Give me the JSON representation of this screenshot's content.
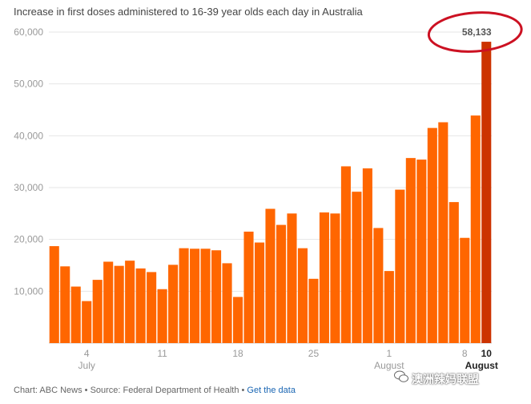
{
  "title": "Increase in first doses administered to 16-39 year olds each day in Australia",
  "footer": {
    "chart_credit": "Chart: ABC News",
    "separator": " • ",
    "source": "Source: Federal Department of Health",
    "link": "Get the data"
  },
  "watermark": "澳洲辣妈联盟",
  "colors": {
    "bar": "#ff6600",
    "highlight_bar": "#cc3300",
    "annotation_circle": "#cc1122",
    "grid": "#e6e6e6",
    "axis_text": "#999999"
  },
  "chart_data": {
    "type": "bar",
    "title": "Increase in first doses administered to 16-39 year olds each day in Australia",
    "xlabel": "",
    "ylabel": "",
    "ylim": [
      0,
      60000
    ],
    "grid": true,
    "y_ticks": [
      "10,000",
      "20,000",
      "30,000",
      "40,000",
      "50,000",
      "60,000"
    ],
    "y_tick_values": [
      10000,
      20000,
      30000,
      40000,
      50000,
      60000
    ],
    "x_ticks": [
      {
        "index": 3,
        "label": "4"
      },
      {
        "index": 10,
        "label": "11"
      },
      {
        "index": 17,
        "label": "18"
      },
      {
        "index": 24,
        "label": "25"
      },
      {
        "index": 31,
        "label": "1"
      },
      {
        "index": 38,
        "label": "8"
      },
      {
        "index": 40,
        "label": "10",
        "bold": true
      }
    ],
    "month_labels": [
      {
        "index": 3,
        "label": "July"
      },
      {
        "index": 31,
        "label": "August"
      },
      {
        "index": 40,
        "label": "August",
        "bold": true
      }
    ],
    "categories": [
      "1 Jul",
      "2 Jul",
      "3 Jul",
      "4 Jul",
      "5 Jul",
      "6 Jul",
      "7 Jul",
      "8 Jul",
      "9 Jul",
      "10 Jul",
      "11 Jul",
      "12 Jul",
      "13 Jul",
      "14 Jul",
      "15 Jul",
      "16 Jul",
      "17 Jul",
      "18 Jul",
      "19 Jul",
      "20 Jul",
      "21 Jul",
      "22 Jul",
      "23 Jul",
      "24 Jul",
      "25 Jul",
      "26 Jul",
      "27 Jul",
      "28 Jul",
      "29 Jul",
      "30 Jul",
      "31 Jul",
      "1 Aug",
      "2 Aug",
      "3 Aug",
      "4 Aug",
      "5 Aug",
      "6 Aug",
      "7 Aug",
      "8 Aug",
      "9 Aug",
      "10 Aug"
    ],
    "values": [
      18700,
      14800,
      10900,
      8100,
      12200,
      15700,
      14900,
      15900,
      14400,
      13700,
      10400,
      15100,
      18300,
      18200,
      18200,
      17900,
      15400,
      8900,
      21500,
      19400,
      25900,
      22800,
      25000,
      18300,
      12400,
      25200,
      25000,
      34100,
      29200,
      33700,
      22200,
      13900,
      29600,
      35700,
      35400,
      41500,
      42600,
      27200,
      20300,
      43900,
      58133
    ],
    "annotation": {
      "index": 40,
      "label": "58,133"
    }
  }
}
